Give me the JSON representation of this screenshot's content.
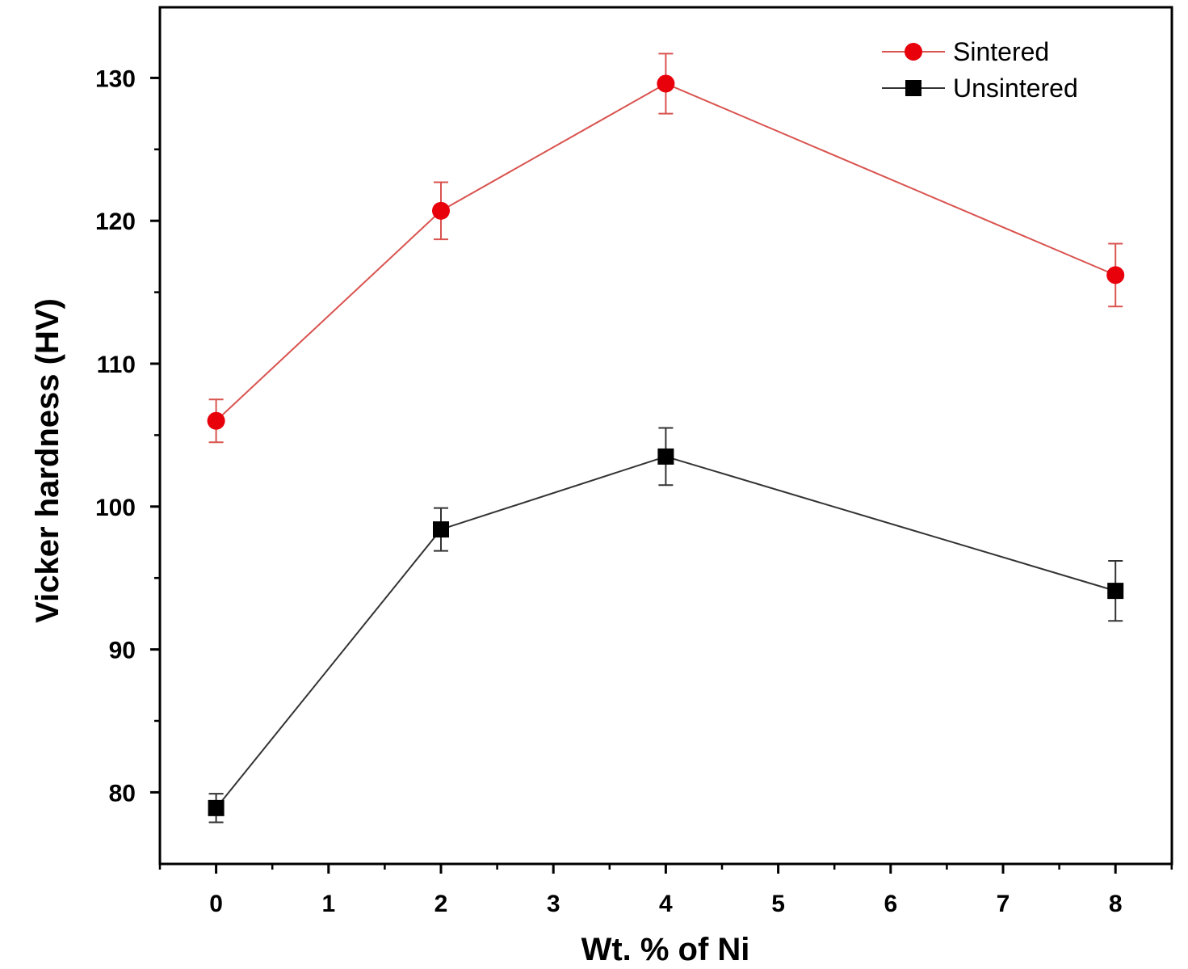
{
  "chart_data": {
    "type": "line",
    "title": "",
    "xlabel": "Wt. % of Ni",
    "ylabel": "Vicker hardness (HV)",
    "xlim": [
      -0.5,
      8.5
    ],
    "ylim": [
      75,
      135
    ],
    "xticks": [
      0,
      1,
      2,
      3,
      4,
      5,
      6,
      7,
      8
    ],
    "yticks": [
      80,
      90,
      100,
      110,
      120,
      130
    ],
    "grid": false,
    "legend_position": "top-right",
    "series": [
      {
        "name": "Sintered",
        "color": "#e8000b",
        "line_color": "#d9534f",
        "marker": "circle",
        "x": [
          0,
          2,
          4,
          8
        ],
        "y": [
          106.0,
          120.7,
          129.6,
          116.2
        ],
        "err": [
          1.5,
          2.0,
          2.1,
          2.2
        ]
      },
      {
        "name": "Unsintered",
        "color": "#000000",
        "line_color": "#333333",
        "marker": "square",
        "x": [
          0,
          2,
          4,
          8
        ],
        "y": [
          78.9,
          98.4,
          103.5,
          94.1
        ],
        "err": [
          1.0,
          1.5,
          2.0,
          2.1
        ]
      }
    ]
  }
}
